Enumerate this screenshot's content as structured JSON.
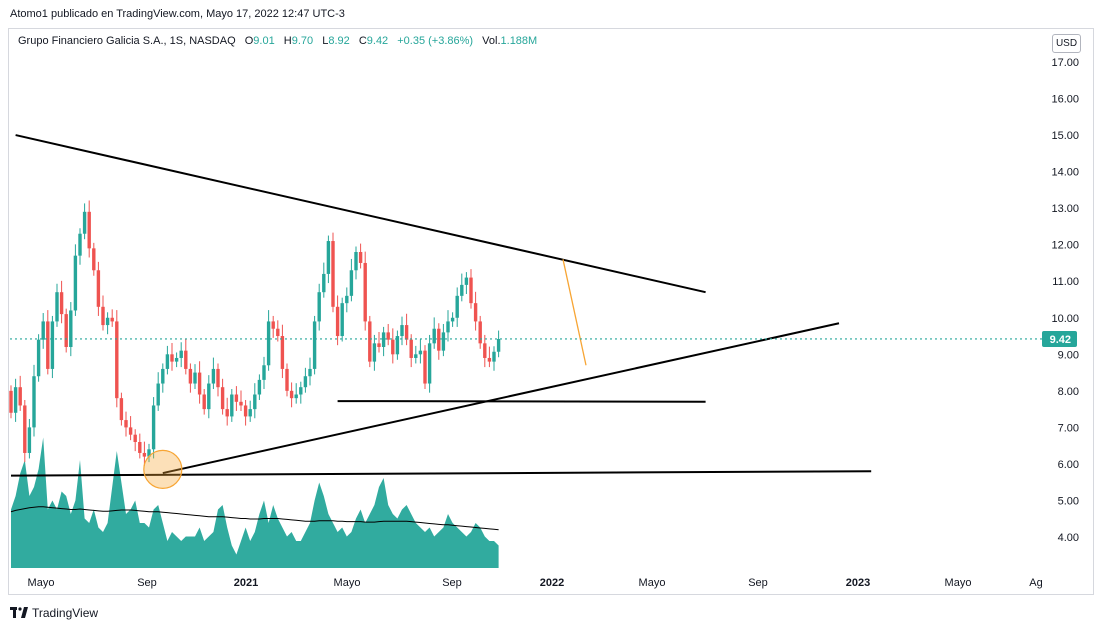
{
  "publisher": "Atomo1 publicado en TradingView.com, Mayo 17, 2022 12:47 UTC-3",
  "legend": {
    "name": "Grupo Financiero Galicia S.A., 1S, NASDAQ",
    "o_label": "O",
    "o_value": "9.01",
    "h_label": "H",
    "h_value": "9.70",
    "l_label": "L",
    "l_value": "8.92",
    "c_label": "C",
    "c_value": "9.42",
    "change": "+0.35 (+3.86%)",
    "vol_label": "Vol.",
    "vol_value": "1.188M"
  },
  "currency_button": "USD",
  "logo_text": "TradingView",
  "colors": {
    "up": "#26a69a",
    "down": "#ef5350",
    "volume": "#26a69a",
    "trendline": "#000000",
    "highlight": "#f7a534",
    "price_label_bg": "#26a69a"
  },
  "chart_data": {
    "type": "candlestick",
    "interval": "1S",
    "y_range": [
      3.2,
      17.6
    ],
    "y_ticks": [
      "17.00",
      "16.00",
      "15.00",
      "14.00",
      "13.00",
      "12.00",
      "11.00",
      "10.00",
      "9.00",
      "8.00",
      "7.00",
      "6.00",
      "5.00",
      "4.00"
    ],
    "x_ticks": [
      "Mayo",
      "Sep",
      "2021",
      "Mayo",
      "Sep",
      "2022",
      "Mayo",
      "Sep",
      "2023",
      "Mayo",
      "Ag"
    ],
    "x_tick_bold": [
      false,
      false,
      true,
      false,
      false,
      true,
      false,
      false,
      true,
      false,
      false
    ],
    "last_price": "9.42",
    "start_price": 8.0,
    "closes": [
      7.4,
      8.1,
      7.6,
      6.3,
      7.0,
      8.4,
      9.4,
      9.9,
      8.6,
      9.9,
      10.7,
      10.1,
      9.2,
      10.2,
      11.7,
      12.3,
      12.9,
      11.9,
      11.3,
      10.3,
      9.8,
      10.0,
      9.9,
      7.8,
      7.2,
      7.0,
      6.8,
      6.6,
      6.3,
      6.2,
      6.4,
      7.6,
      8.2,
      8.6,
      9.0,
      8.8,
      8.9,
      9.1,
      8.6,
      8.2,
      8.5,
      7.9,
      7.5,
      8.2,
      8.6,
      8.1,
      7.5,
      7.3,
      7.9,
      7.7,
      7.6,
      7.3,
      7.5,
      7.9,
      8.3,
      8.7,
      9.9,
      9.7,
      9.5,
      8.6,
      8.0,
      7.8,
      7.9,
      8.1,
      8.4,
      8.6,
      9.9,
      10.7,
      11.2,
      12.1,
      10.3,
      9.5,
      10.4,
      10.6,
      11.3,
      11.8,
      11.5,
      9.9,
      8.8,
      9.3,
      9.2,
      9.6,
      9.4,
      9.0,
      9.5,
      9.8,
      9.4,
      8.9,
      9.0,
      9.1,
      8.2,
      9.3,
      9.7,
      9.1,
      9.6,
      9.9,
      10.0,
      10.6,
      10.9,
      11.1,
      10.4,
      9.9,
      9.3,
      8.9,
      8.8,
      9.07,
      9.42
    ],
    "volumes": [
      1.3,
      1.6,
      2.1,
      2.4,
      1.6,
      1.8,
      2.2,
      2.9,
      1.3,
      1.5,
      1.3,
      1.7,
      1.6,
      1.2,
      1.5,
      2.4,
      1.1,
      1.0,
      1.3,
      0.9,
      0.8,
      1.0,
      1.8,
      2.6,
      1.9,
      1.2,
      1.3,
      1.5,
      1.0,
      1.0,
      0.9,
      1.3,
      1.4,
      1.0,
      0.6,
      0.8,
      0.7,
      0.6,
      0.7,
      0.7,
      0.7,
      0.9,
      0.6,
      0.7,
      0.8,
      1.3,
      1.4,
      0.9,
      0.5,
      0.3,
      0.6,
      0.9,
      0.6,
      0.8,
      1.2,
      1.5,
      1.0,
      1.4,
      1.1,
      0.9,
      0.7,
      0.8,
      0.6,
      0.6,
      0.8,
      1.0,
      1.5,
      1.9,
      1.6,
      1.2,
      1.0,
      0.8,
      0.9,
      0.7,
      0.8,
      1.1,
      1.3,
      1.0,
      1.2,
      1.4,
      1.8,
      2.0,
      1.4,
      1.2,
      1.1,
      1.3,
      1.4,
      1.2,
      1.0,
      0.9,
      0.8,
      0.9,
      0.7,
      0.8,
      0.9,
      1.2,
      1.0,
      0.9,
      0.8,
      0.7,
      0.8,
      1.0,
      0.9,
      0.7,
      0.6,
      0.6,
      0.5
    ],
    "volume_ma": [
      1.25,
      1.28,
      1.3,
      1.32,
      1.34,
      1.35,
      1.36,
      1.36,
      1.35,
      1.34,
      1.33,
      1.32,
      1.31,
      1.3,
      1.3,
      1.31,
      1.3,
      1.29,
      1.28,
      1.27,
      1.26,
      1.26,
      1.27,
      1.28,
      1.29,
      1.29,
      1.29,
      1.28,
      1.27,
      1.26,
      1.25,
      1.25,
      1.25,
      1.24,
      1.23,
      1.22,
      1.21,
      1.2,
      1.19,
      1.18,
      1.17,
      1.16,
      1.15,
      1.14,
      1.14,
      1.14,
      1.14,
      1.13,
      1.12,
      1.11,
      1.1,
      1.1,
      1.09,
      1.09,
      1.09,
      1.1,
      1.1,
      1.1,
      1.1,
      1.09,
      1.08,
      1.07,
      1.06,
      1.05,
      1.04,
      1.04,
      1.04,
      1.05,
      1.05,
      1.05,
      1.05,
      1.04,
      1.04,
      1.03,
      1.03,
      1.03,
      1.03,
      1.02,
      1.02,
      1.02,
      1.03,
      1.04,
      1.04,
      1.04,
      1.04,
      1.04,
      1.04,
      1.03,
      1.02,
      1.01,
      1.0,
      0.99,
      0.98,
      0.97,
      0.96,
      0.96,
      0.95,
      0.94,
      0.93,
      0.92,
      0.91,
      0.9,
      0.89,
      0.88,
      0.87,
      0.86,
      0.85
    ],
    "trendlines": [
      {
        "from": [
          1,
          15.0
        ],
        "to": [
          151,
          10.7
        ]
      },
      {
        "from": [
          33,
          5.75
        ],
        "to": [
          180,
          9.85
        ]
      },
      {
        "from": [
          0,
          5.68
        ],
        "to": [
          187,
          5.8
        ]
      },
      {
        "from": [
          71,
          7.72
        ],
        "to": [
          151,
          7.7
        ]
      },
      {
        "from": [
          120,
          11.6
        ],
        "to": [
          125,
          8.7
        ],
        "color": "orange"
      }
    ],
    "highlight_circle": {
      "index": 33,
      "price": 5.85
    }
  }
}
